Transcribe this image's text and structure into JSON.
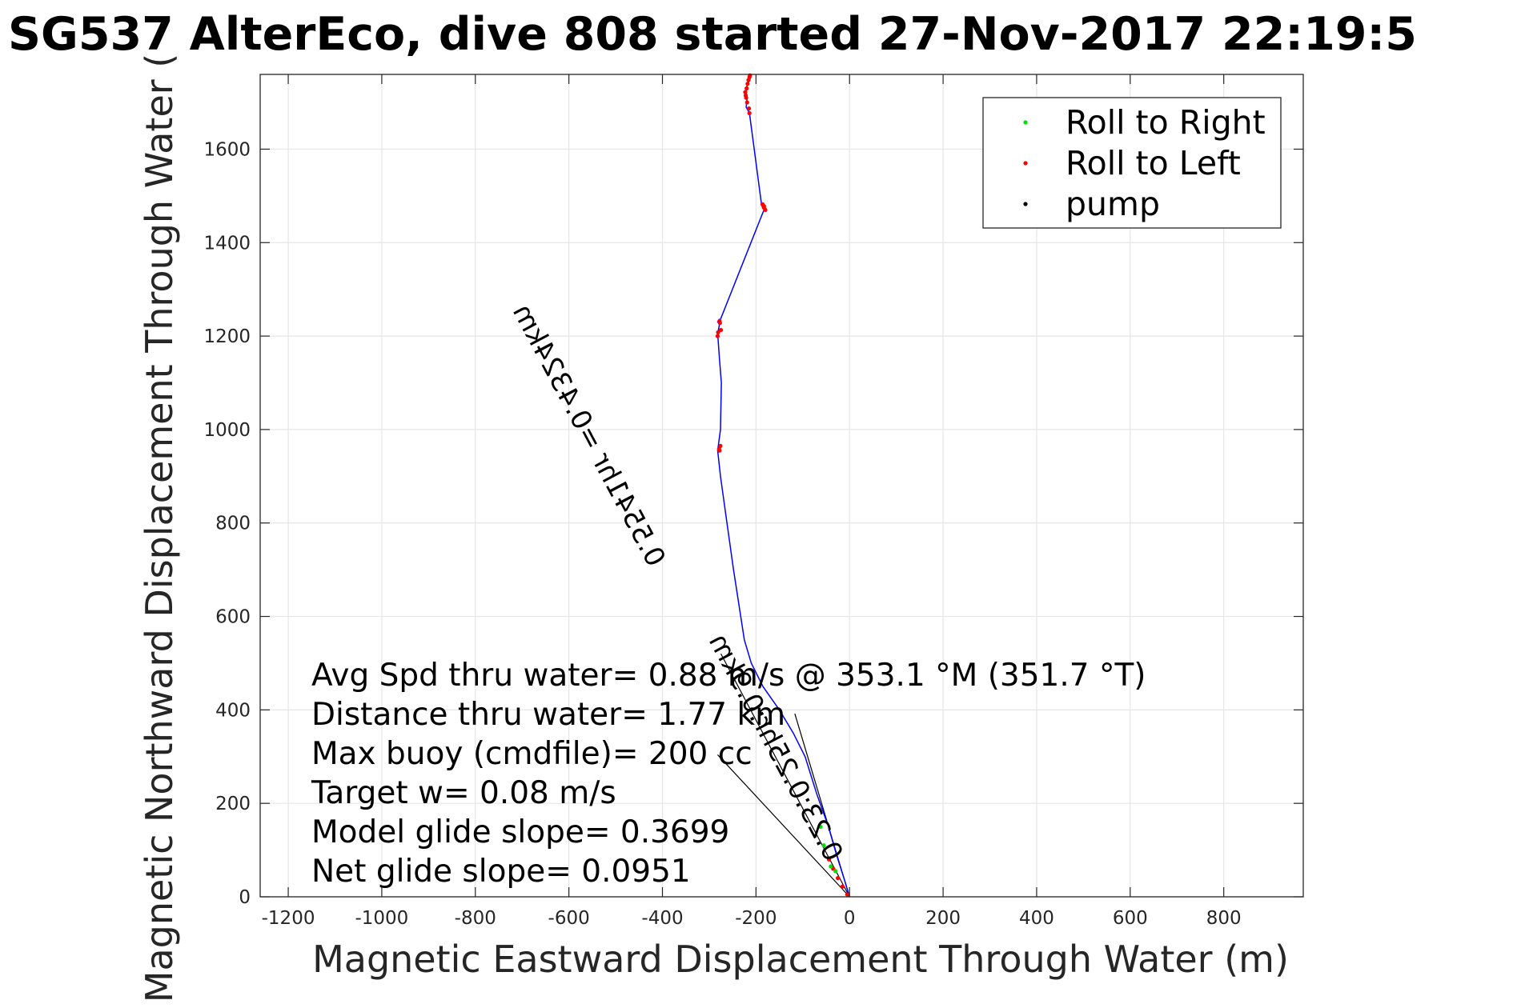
{
  "chart_data": {
    "type": "line",
    "title": "SG537 AlterEco, dive 808 started 27-Nov-2017 22:19:5",
    "xlabel": "Magnetic Eastward Displacement Through Water (m)",
    "ylabel": "Magnetic Northward Displacement Through Water (",
    "xlim": [
      -1260,
      970
    ],
    "ylim": [
      0,
      1760
    ],
    "xticks": [
      -1200,
      -1000,
      -800,
      -600,
      -400,
      -200,
      0,
      200,
      400,
      600,
      800
    ],
    "yticks": [
      0,
      200,
      400,
      600,
      800,
      1000,
      1200,
      1400,
      1600
    ],
    "grid": true,
    "legend": {
      "placement": "top-right",
      "entries": [
        {
          "label": "Roll to Right",
          "color": "#00e000",
          "marker": "dot"
        },
        {
          "label": "Roll to Left",
          "color": "#ff0000",
          "marker": "dot"
        },
        {
          "label": "pump",
          "color": "#000000",
          "marker": "dot"
        }
      ]
    },
    "series": [
      {
        "color": "#0000ff",
        "x": [
          0,
          -12,
          -28,
          -45,
          -70,
          -95,
          -120,
          -150,
          -185,
          -210,
          -225,
          -248,
          -262,
          -276,
          -282,
          -276,
          -274,
          -278,
          -282,
          -280,
          -277,
          -279,
          -282,
          -279,
          -183,
          -188,
          -214,
          -221,
          -219,
          -223,
          -222,
          -220,
          -218,
          -213,
          -213
        ],
        "y": [
          0,
          40,
          90,
          150,
          220,
          300,
          350,
          400,
          450,
          500,
          550,
          700,
          800,
          900,
          955,
          1000,
          1100,
          1150,
          1205,
          1215,
          1230,
          1235,
          1230,
          1228,
          1470,
          1480,
          1677,
          1690,
          1710,
          1720,
          1727,
          1733,
          1740,
          1748,
          1757
        ]
      }
    ],
    "roll_left_points": {
      "x": [
        -278,
        -279,
        -276,
        -282,
        -281,
        -275,
        -277,
        -278,
        -180,
        -183,
        -186,
        -183,
        -214,
        -215,
        -219,
        -221,
        -222,
        -223,
        -220,
        -218,
        -216,
        -214,
        -213,
        -44,
        -35,
        -25,
        -15,
        -5
      ],
      "y": [
        955,
        958,
        965,
        1200,
        1208,
        1213,
        1228,
        1232,
        1470,
        1478,
        1482,
        1475,
        1677,
        1687,
        1700,
        1710,
        1715,
        1722,
        1730,
        1740,
        1748,
        1754,
        1758,
        80,
        60,
        40,
        22,
        5
      ]
    },
    "roll_right_points": {
      "x": [
        -55,
        -40,
        -62,
        -30
      ],
      "y": [
        110,
        65,
        150,
        55
      ]
    },
    "model_glide_lines": [
      {
        "x": [
          0,
          -282
        ],
        "y": [
          0,
          304
        ]
      },
      {
        "x": [
          0,
          -117
        ],
        "y": [
          0,
          392
        ]
      },
      {
        "x": [
          0,
          -275
        ],
        "y": [
          0,
          520
        ]
      }
    ],
    "annotations": {
      "avg_speed": "Avg Spd thru water=  0.88 m/s @ 353.1 °M (351.7 °T)",
      "distance": "Distance thru water=  1.77 km",
      "max_buoy": "Max buoy (cmdfile)= 200 cc",
      "target_w": "Target w= 0.08 m/s",
      "model_glide": "Model glide slope= 0.3699",
      "net_glide": "Net glide slope= 0.0951",
      "rotated_label_1": "0.5541hr =0.4324km",
      "rotated_label_2": "0.23:0.25hr:0.9km"
    }
  }
}
